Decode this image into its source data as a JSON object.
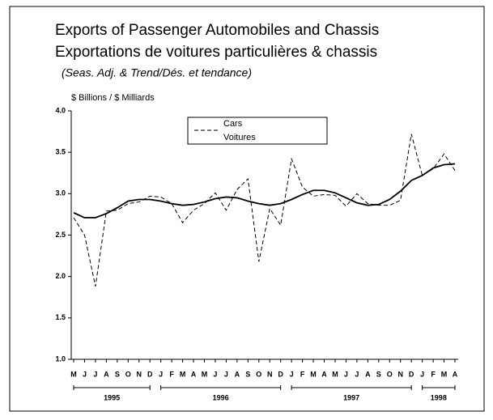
{
  "chart_data": {
    "type": "line",
    "title": "Exports of Passenger Automobiles and Chassis",
    "title_fr": "Exportations de voitures particulières & chassis",
    "subtitle": "(Seas. Adj. & Trend/Dés. et tendance)",
    "y_label": "$ Billions / $ Milliards",
    "categories": [
      "M",
      "J",
      "J",
      "A",
      "S",
      "O",
      "N",
      "D",
      "J",
      "F",
      "M",
      "A",
      "M",
      "J",
      "J",
      "A",
      "S",
      "O",
      "N",
      "D",
      "J",
      "F",
      "M",
      "A",
      "M",
      "J",
      "J",
      "A",
      "S",
      "O",
      "N",
      "D",
      "J",
      "F",
      "M",
      "A"
    ],
    "years": [
      "1995",
      "1996",
      "1997",
      "1998"
    ],
    "legend": [
      "Cars",
      "Voitures"
    ],
    "series": [
      {
        "color": "#000000",
        "dash": true,
        "values": [
          2.71,
          2.5,
          1.88,
          2.79,
          2.8,
          2.88,
          2.9,
          2.97,
          2.96,
          2.88,
          2.65,
          2.8,
          2.88,
          3.01,
          2.8,
          3.05,
          3.18,
          2.18,
          2.82,
          2.62,
          3.42,
          3.08,
          2.97,
          2.99,
          2.98,
          2.85,
          3.0,
          2.88,
          2.86,
          2.86,
          2.92,
          3.72,
          3.22,
          3.3,
          3.48,
          3.28
        ]
      },
      {
        "color": "#000000",
        "dash": false,
        "values": [
          2.77,
          2.71,
          2.71,
          2.76,
          2.83,
          2.91,
          2.93,
          2.93,
          2.91,
          2.88,
          2.86,
          2.87,
          2.9,
          2.94,
          2.96,
          2.95,
          2.91,
          2.88,
          2.86,
          2.88,
          2.93,
          2.99,
          3.04,
          3.04,
          3.01,
          2.95,
          2.89,
          2.86,
          2.87,
          2.93,
          3.03,
          3.16,
          3.22,
          3.31,
          3.35,
          3.36
        ]
      }
    ],
    "ylim": [
      1,
      4
    ],
    "yticks": [
      {
        "value": 1,
        "label": "1.0"
      },
      1.5,
      {
        "value": 2,
        "label": "2.0"
      },
      2.5,
      {
        "value": 3,
        "label": "3.0"
      },
      3.5,
      {
        "value": 4,
        "label": "4.0"
      }
    ]
  }
}
